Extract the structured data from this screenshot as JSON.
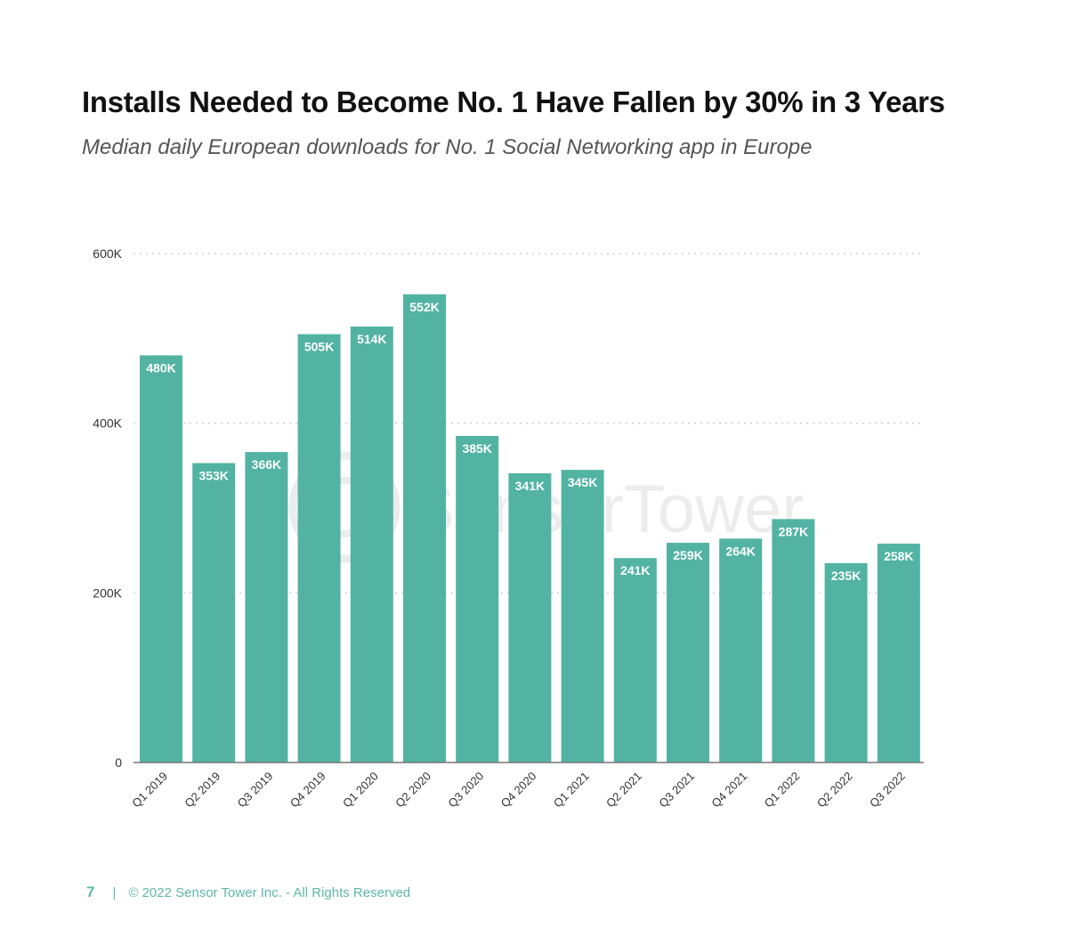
{
  "chart_data": {
    "type": "bar",
    "title": "Installs Needed to Become No. 1 Have Fallen by 30% in 3 Years",
    "subtitle": "Median daily European downloads for No. 1 Social Networking app in Europe",
    "categories": [
      "Q1 2019",
      "Q2 2019",
      "Q3 2019",
      "Q4 2019",
      "Q1 2020",
      "Q2 2020",
      "Q3 2020",
      "Q4 2020",
      "Q1 2021",
      "Q2 2021",
      "Q3 2021",
      "Q4 2021",
      "Q1 2022",
      "Q2 2022",
      "Q3 2022"
    ],
    "values": [
      480,
      353,
      366,
      505,
      514,
      552,
      385,
      341,
      345,
      241,
      259,
      264,
      287,
      235,
      258
    ],
    "data_labels": [
      "480K",
      "353K",
      "366K",
      "505K",
      "514K",
      "552K",
      "385K",
      "341K",
      "345K",
      "241K",
      "259K",
      "264K",
      "287K",
      "235K",
      "258K"
    ],
    "unit": "thousands",
    "ylim": [
      0,
      600
    ],
    "yticks": [
      0,
      200,
      400,
      600
    ],
    "ytick_labels": [
      "0",
      "200K",
      "400K",
      "600K"
    ],
    "xlabel": "",
    "ylabel": "",
    "grid": true,
    "bar_color": "#52b3a3",
    "watermark": "SensorTower"
  },
  "footer": {
    "page_number": "7",
    "separator": "|",
    "copyright": "© 2022 Sensor Tower Inc. - All Rights Reserved"
  }
}
